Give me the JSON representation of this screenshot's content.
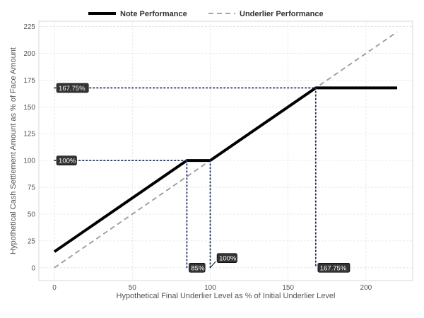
{
  "chart_data": {
    "type": "line",
    "xlabel": "Hypothetical Final Underlier Level as % of Initial Underlier Level",
    "ylabel": "Hypothetical Cash Settlement Amount as % of Face Amount",
    "xlim": [
      -10,
      230
    ],
    "ylim": [
      -12,
      230
    ],
    "x_ticks": [
      0,
      50,
      100,
      150,
      200
    ],
    "y_ticks": [
      0,
      25,
      50,
      75,
      100,
      125,
      150,
      175,
      200,
      225
    ],
    "grid": true,
    "legend_position": "top",
    "series": [
      {
        "name": "Note Performance",
        "style": "solid",
        "color": "#000000",
        "points": [
          [
            0,
            15
          ],
          [
            85,
            100
          ],
          [
            100,
            100
          ],
          [
            167.75,
            167.75
          ],
          [
            220,
            167.75
          ]
        ]
      },
      {
        "name": "Underlier Performance",
        "style": "dashed",
        "color": "#999999",
        "points": [
          [
            0,
            0
          ],
          [
            220,
            220
          ]
        ]
      }
    ],
    "guides": [
      {
        "points": [
          [
            0,
            167.75
          ],
          [
            167.75,
            167.75
          ]
        ]
      },
      {
        "points": [
          [
            167.75,
            167.75
          ],
          [
            167.75,
            0
          ]
        ]
      },
      {
        "points": [
          [
            0,
            100
          ],
          [
            85,
            100
          ]
        ]
      },
      {
        "points": [
          [
            85,
            100
          ],
          [
            85,
            0
          ]
        ]
      },
      {
        "points": [
          [
            100,
            100
          ],
          [
            100,
            0
          ]
        ]
      }
    ],
    "annotations": [
      {
        "text": "167.75%",
        "x": 0,
        "y": 167.75,
        "anchor": "left"
      },
      {
        "text": "100%",
        "x": 0,
        "y": 100,
        "anchor": "left"
      },
      {
        "text": "85%",
        "x": 85,
        "y": 0,
        "anchor": "left"
      },
      {
        "text": "100%",
        "x": 103,
        "y": 9,
        "anchor": "left",
        "pointer": [
          100,
          0
        ]
      },
      {
        "text": "167.75%",
        "x": 167.75,
        "y": 0,
        "anchor": "left"
      }
    ],
    "colors": {
      "grid": "#e3e3e3",
      "panel_border": "#d9d9d9",
      "guide": "#1f2f5c",
      "label_fill": "#333333",
      "label_text": "#ffffff"
    }
  }
}
